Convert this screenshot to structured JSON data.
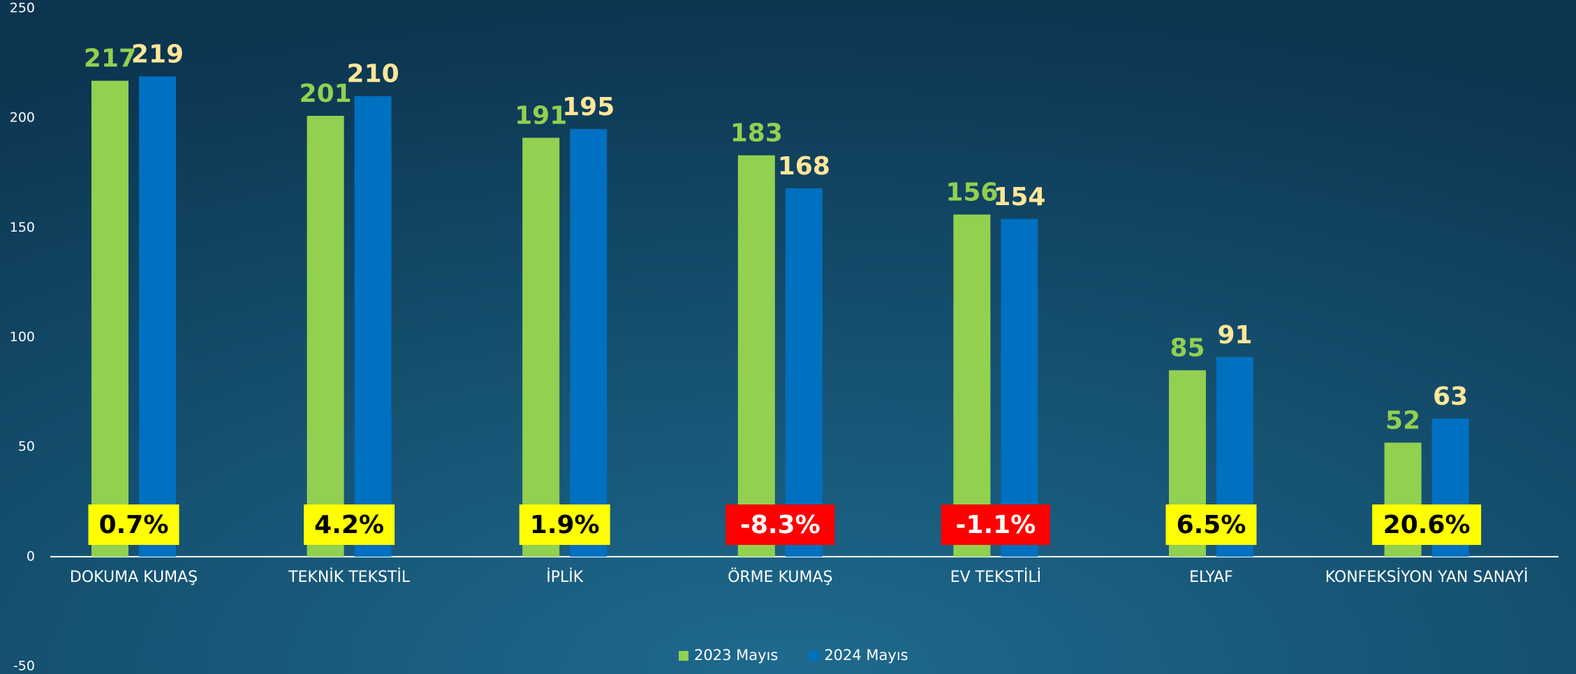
{
  "chart_data": {
    "type": "bar",
    "categories": [
      "DOKUMA KUMAŞ",
      "TEKNİK TEKSTİL",
      "İPLİK",
      "ÖRME KUMAŞ",
      "EV TEKSTİLİ",
      "ELYAF",
      "KONFEKSİYON YAN SANAYİ"
    ],
    "series": [
      {
        "name": "2023 Mayıs",
        "color": "#92d050",
        "label_color": "#92d050",
        "values": [
          217,
          201,
          191,
          183,
          156,
          85,
          52
        ]
      },
      {
        "name": "2024 Mayıs",
        "color": "#0070c0",
        "label_color": "#ffe699",
        "values": [
          219,
          210,
          195,
          168,
          154,
          91,
          63
        ]
      }
    ],
    "annotations": [
      {
        "text": "0.7%",
        "background": "#ffff00",
        "color": "#000000"
      },
      {
        "text": "4.2%",
        "background": "#ffff00",
        "color": "#000000"
      },
      {
        "text": "1.9%",
        "background": "#ffff00",
        "color": "#000000"
      },
      {
        "text": "-8.3%",
        "background": "#ff0000",
        "color": "#ffffff"
      },
      {
        "text": "-1.1%",
        "background": "#ff0000",
        "color": "#ffffff"
      },
      {
        "text": "6.5%",
        "background": "#ffff00",
        "color": "#000000"
      },
      {
        "text": "20.6%",
        "background": "#ffff00",
        "color": "#000000"
      }
    ],
    "ylim": [
      -50,
      250
    ],
    "yticks": [
      -50,
      0,
      50,
      100,
      150,
      200,
      250
    ],
    "legend": "bottom",
    "grid": false
  }
}
